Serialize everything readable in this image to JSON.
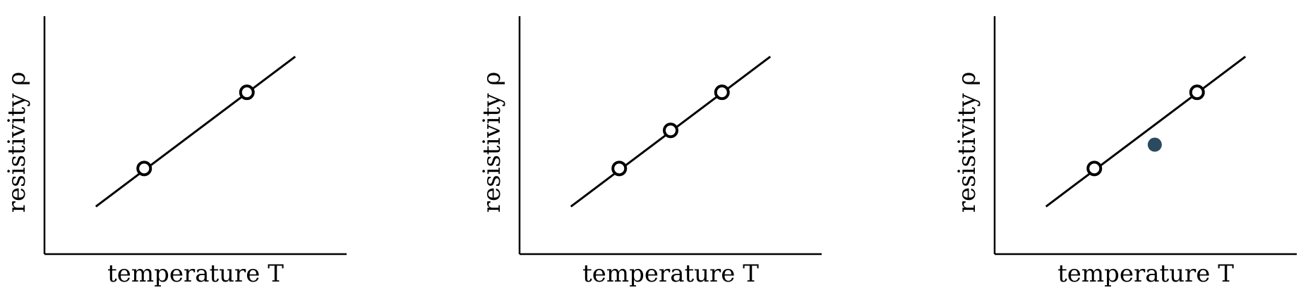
{
  "chart_data": [
    {
      "type": "line",
      "xlabel": "temperature T",
      "ylabel": "resistivity ρ",
      "xlim": [
        0,
        10
      ],
      "ylim": [
        0,
        10
      ],
      "grid": false,
      "series": [
        {
          "style": "line",
          "x": [
            1.7,
            8.3
          ],
          "y": [
            2.0,
            8.3
          ],
          "color": "#000000"
        },
        {
          "style": "open-circle",
          "x": [
            3.3,
            6.7
          ],
          "y": [
            3.6,
            6.8
          ],
          "color": "#000000"
        }
      ]
    },
    {
      "type": "line",
      "xlabel": "temperature T",
      "ylabel": "resistivity ρ",
      "xlim": [
        0,
        10
      ],
      "ylim": [
        0,
        10
      ],
      "grid": false,
      "series": [
        {
          "style": "line",
          "x": [
            1.7,
            8.3
          ],
          "y": [
            2.0,
            8.3
          ],
          "color": "#000000"
        },
        {
          "style": "open-circle",
          "x": [
            3.3,
            5.0,
            6.7
          ],
          "y": [
            3.6,
            5.2,
            6.8
          ],
          "color": "#000000"
        }
      ]
    },
    {
      "type": "line",
      "xlabel": "temperature T",
      "ylabel": "resistivity ρ",
      "xlim": [
        0,
        10
      ],
      "ylim": [
        0,
        10
      ],
      "grid": false,
      "series": [
        {
          "style": "line",
          "x": [
            1.7,
            8.3
          ],
          "y": [
            2.0,
            8.3
          ],
          "color": "#000000"
        },
        {
          "style": "open-circle",
          "x": [
            3.3,
            6.7
          ],
          "y": [
            3.6,
            6.8
          ],
          "color": "#000000"
        },
        {
          "style": "filled-circle",
          "x": [
            5.3
          ],
          "y": [
            4.6
          ],
          "color": "#2b4a60"
        }
      ]
    }
  ]
}
